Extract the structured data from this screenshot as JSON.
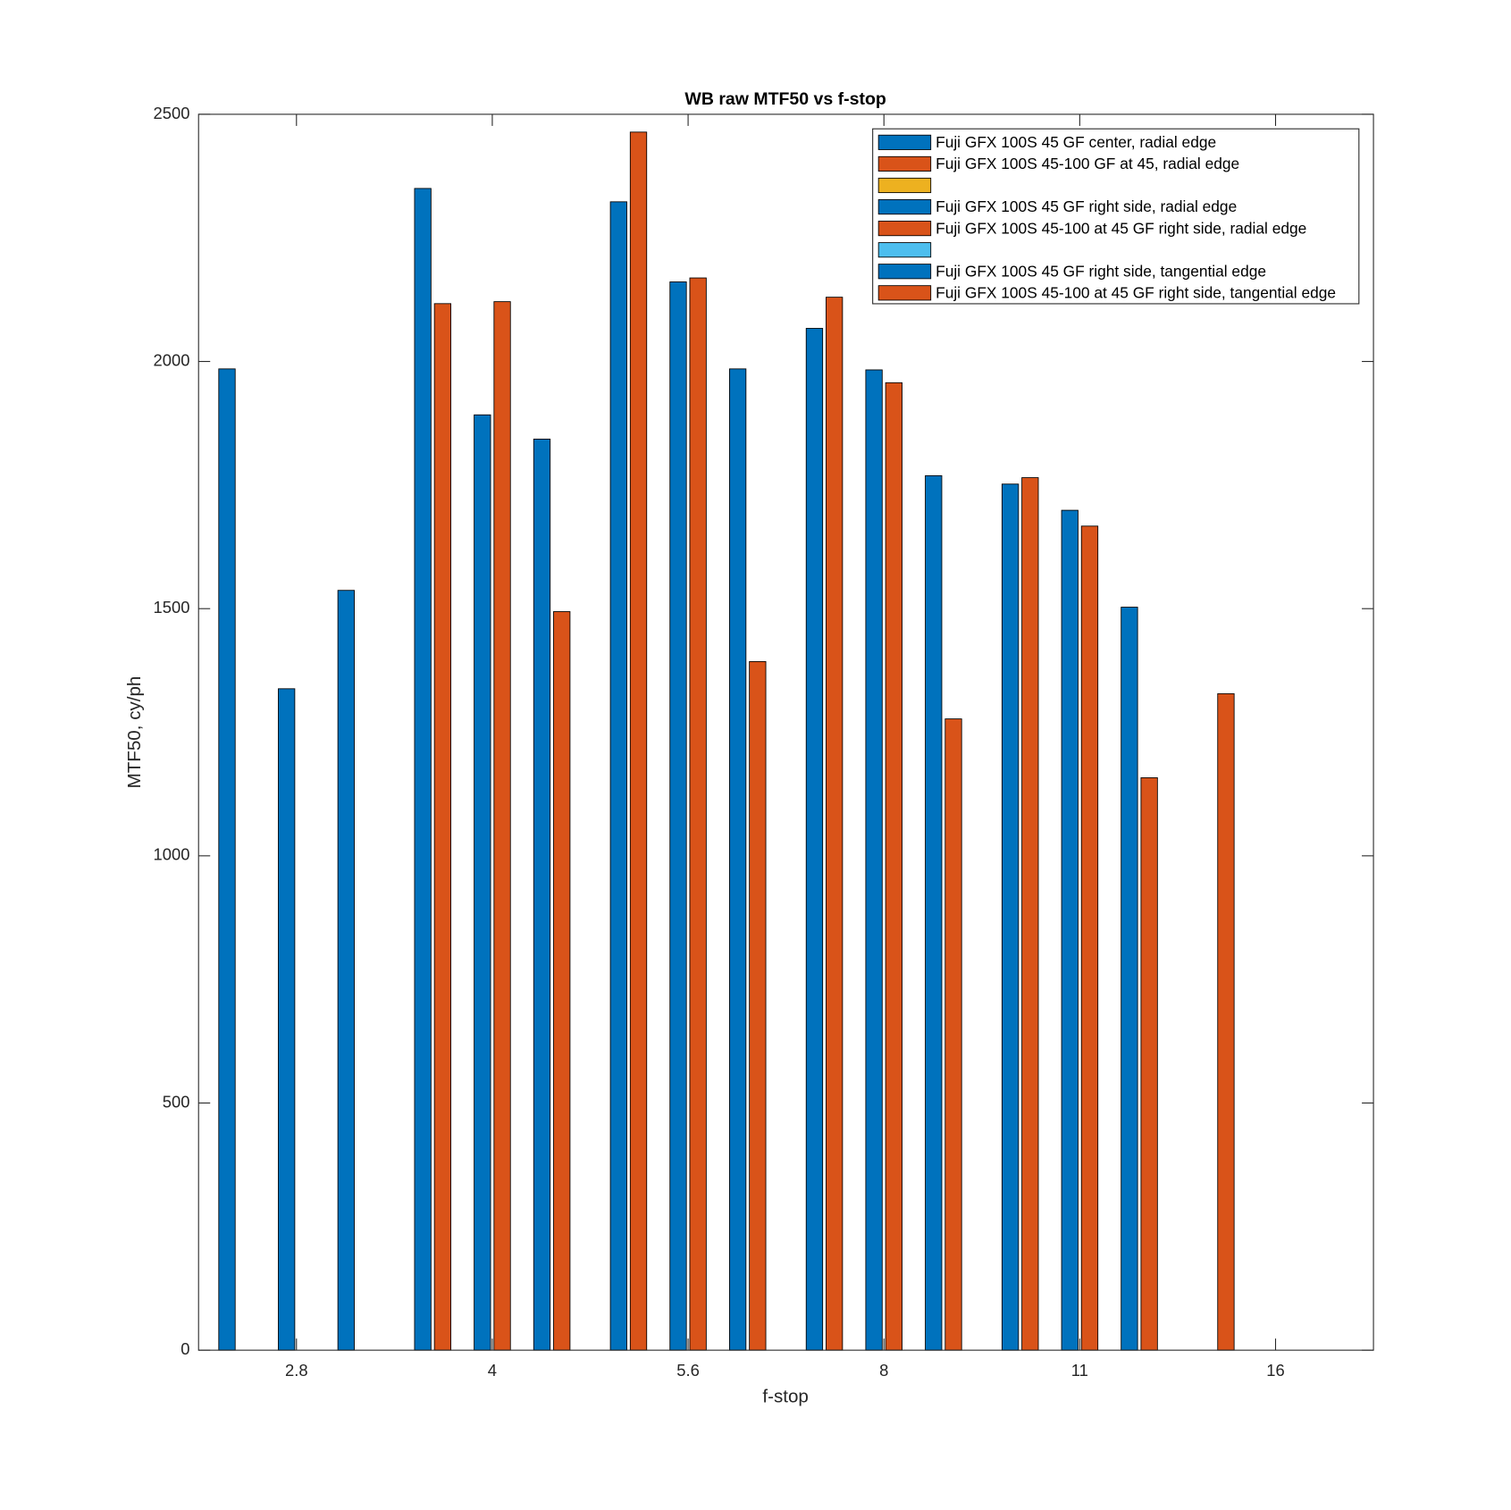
{
  "chart_data": {
    "type": "bar",
    "title": "WB raw MTF50 vs f-stop",
    "x_label": "f-stop",
    "y_label": "MTF50, cy/ph",
    "categories": [
      "2.8",
      "4",
      "5.6",
      "8",
      "11",
      "16"
    ],
    "ylim": [
      0,
      2500
    ],
    "yticks": [
      0,
      500,
      1000,
      1500,
      2000,
      2500
    ],
    "legend": "upper right",
    "series": [
      {
        "name": "Fuji GFX 100S 45 GF center, radial edge",
        "color": "#0072BD",
        "values": [
          1985,
          2350,
          2323,
          2067,
          1752,
          null
        ]
      },
      {
        "name": "Fuji GFX 100S 45-100 GF at 45, radial edge",
        "color": "#D95319",
        "values": [
          null,
          2117,
          2464,
          2130,
          1765,
          1328
        ]
      },
      {
        "color": "#EDB120",
        "values": [
          null,
          null,
          null,
          null,
          null,
          null
        ]
      },
      {
        "name": "Fuji GFX 100S 45 GF right side, radial edge",
        "color": "#0072BD",
        "values": [
          1338,
          1892,
          2161,
          1983,
          1699,
          null
        ]
      },
      {
        "name": "Fuji GFX 100S 45-100 at 45 GF right side, radial edge",
        "color": "#D95319",
        "values": [
          null,
          2121,
          2169,
          1957,
          1667,
          null
        ]
      },
      {
        "color": "#4DBEEE",
        "values": [
          null,
          null,
          null,
          null,
          null,
          null
        ]
      },
      {
        "name": "Fuji GFX 100S 45 GF right side, tangential edge",
        "color": "#0072BD",
        "values": [
          1537,
          1843,
          1985,
          1769,
          1503,
          null
        ]
      },
      {
        "name": "Fuji GFX 100S 45-100 at 45 GF right side, tangential edge",
        "color": "#D95319",
        "values": [
          null,
          1494,
          1393,
          1277,
          1158,
          null
        ]
      }
    ]
  }
}
